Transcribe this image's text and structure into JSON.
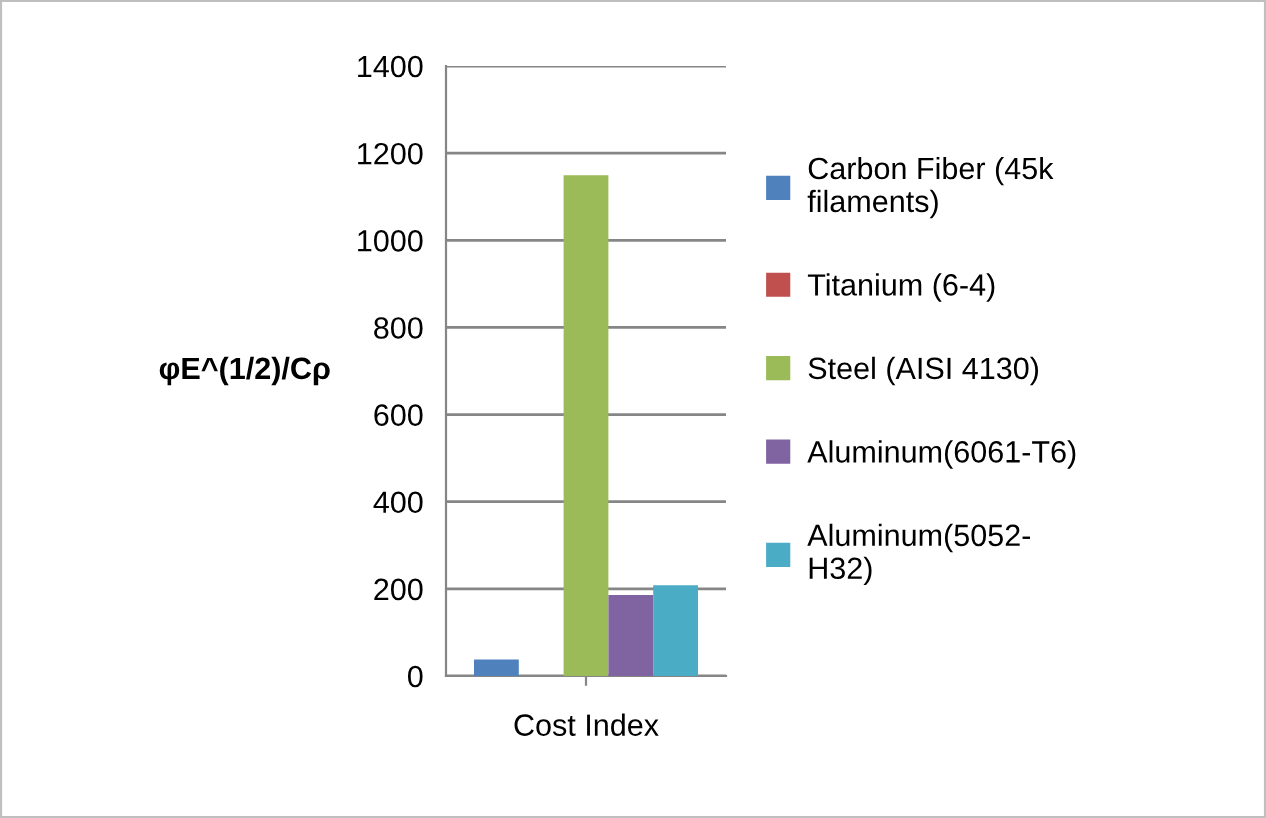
{
  "chart_data": {
    "type": "bar",
    "ylabel": "φE^(1/2)/Cρ",
    "categories": [
      "Cost Index"
    ],
    "series": [
      {
        "name": "Carbon Fiber (45k\nfilaments)",
        "color": "#4f81bd",
        "values": [
          38
        ]
      },
      {
        "name": "Titanium (6-4)",
        "color": "#c0504d",
        "values": [
          0
        ]
      },
      {
        "name": "Steel (AISI 4130)",
        "color": "#9bbb59",
        "values": [
          1149
        ]
      },
      {
        "name": "Aluminum(6061-T6)",
        "color": "#8064a2",
        "values": [
          186
        ]
      },
      {
        "name": "Aluminum(5052-\nH32)",
        "color": "#4bacc6",
        "values": [
          208
        ]
      }
    ],
    "ylim": [
      0,
      1400
    ],
    "yticks": [
      0,
      200,
      400,
      600,
      800,
      1000,
      1200,
      1400
    ],
    "grid": "y",
    "legend": "right"
  }
}
